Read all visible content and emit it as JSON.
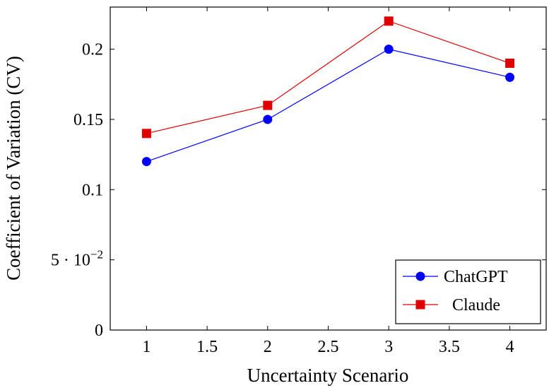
{
  "chart_data": {
    "type": "line",
    "title": "",
    "xlabel": "Uncertainty Scenario",
    "ylabel": "Coefficient of Variation (CV)",
    "xlim": [
      0.7,
      4.3
    ],
    "ylim": [
      0,
      0.23
    ],
    "x_ticks": [
      1,
      1.5,
      2,
      2.5,
      3,
      3.5,
      4
    ],
    "x_tick_labels": [
      "1",
      "1.5",
      "2",
      "2.5",
      "3",
      "3.5",
      "4"
    ],
    "y_ticks": [
      0,
      0.05,
      0.1,
      0.15,
      0.2
    ],
    "y_tick_labels": [
      "0",
      "5 · 10",
      "0.1",
      "0.15",
      "0.2"
    ],
    "y_tick_label_exponent": "−2",
    "grid": false,
    "legend_position": "bottom-right",
    "series": [
      {
        "name": "ChatGPT",
        "color": "#0000ff",
        "marker": "circle",
        "x": [
          1,
          2,
          3,
          4
        ],
        "values": [
          0.12,
          0.15,
          0.2,
          0.18
        ]
      },
      {
        "name": "Claude",
        "color": "#e00000",
        "marker": "square",
        "x": [
          1,
          2,
          3,
          4
        ],
        "values": [
          0.14,
          0.16,
          0.22,
          0.19
        ]
      }
    ]
  }
}
